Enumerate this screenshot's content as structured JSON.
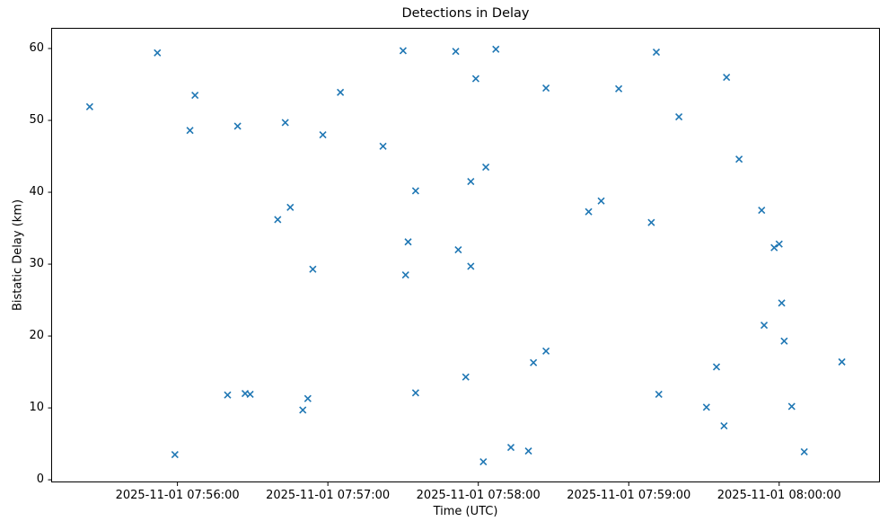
{
  "figure": {
    "title": "Detections in Delay",
    "xlabel": "Time (UTC)",
    "ylabel": "Bistatic Delay (km)"
  },
  "chart_data": {
    "type": "scatter",
    "title": "Detections in Delay",
    "xlabel": "Time (UTC)",
    "ylabel": "Bistatic Delay (km)",
    "date": "2025-11-01",
    "marker": "x",
    "marker_color": "#1f77b4",
    "axis_color": "#000000",
    "grid": false,
    "legend": "none",
    "xlim": [
      "07:55:10",
      "08:00:40"
    ],
    "ylim": [
      -0.3,
      62.75
    ],
    "x_ticks": [
      {
        "time": "07:56:00",
        "label": "2025-11-01 07:56:00"
      },
      {
        "time": "07:57:00",
        "label": "2025-11-01 07:57:00"
      },
      {
        "time": "07:58:00",
        "label": "2025-11-01 07:58:00"
      },
      {
        "time": "07:59:00",
        "label": "2025-11-01 07:59:00"
      },
      {
        "time": "08:00:00",
        "label": "2025-11-01 08:00:00"
      }
    ],
    "y_ticks": [
      0,
      10,
      20,
      30,
      40,
      50,
      60
    ],
    "points": [
      [
        "07:55:25",
        51.9
      ],
      [
        "07:55:52",
        59.4
      ],
      [
        "07:55:59",
        3.5
      ],
      [
        "07:56:05",
        48.6
      ],
      [
        "07:56:07",
        53.5
      ],
      [
        "07:56:20",
        11.8
      ],
      [
        "07:56:24",
        49.2
      ],
      [
        "07:56:27",
        12.0
      ],
      [
        "07:56:29",
        11.9
      ],
      [
        "07:56:40",
        36.2
      ],
      [
        "07:56:43",
        49.7
      ],
      [
        "07:56:45",
        37.9
      ],
      [
        "07:56:50",
        9.7
      ],
      [
        "07:56:52",
        11.3
      ],
      [
        "07:56:54",
        29.3
      ],
      [
        "07:56:58",
        48.0
      ],
      [
        "07:57:05",
        53.9
      ],
      [
        "07:57:22",
        46.4
      ],
      [
        "07:57:30",
        59.7
      ],
      [
        "07:57:31",
        28.5
      ],
      [
        "07:57:32",
        33.1
      ],
      [
        "07:57:35",
        40.2
      ],
      [
        "07:57:35",
        12.1
      ],
      [
        "07:57:51",
        59.6
      ],
      [
        "07:57:52",
        32.0
      ],
      [
        "07:57:55",
        14.3
      ],
      [
        "07:57:57",
        41.5
      ],
      [
        "07:57:57",
        29.7
      ],
      [
        "07:57:59",
        55.8
      ],
      [
        "07:58:02",
        2.5
      ],
      [
        "07:58:03",
        43.5
      ],
      [
        "07:58:07",
        59.9
      ],
      [
        "07:58:13",
        4.5
      ],
      [
        "07:58:20",
        4.0
      ],
      [
        "07:58:22",
        16.3
      ],
      [
        "07:58:27",
        54.5
      ],
      [
        "07:58:27",
        17.9
      ],
      [
        "07:58:44",
        37.3
      ],
      [
        "07:58:49",
        38.8
      ],
      [
        "07:58:56",
        54.4
      ],
      [
        "07:59:09",
        35.8
      ],
      [
        "07:59:11",
        59.5
      ],
      [
        "07:59:12",
        11.9
      ],
      [
        "07:59:20",
        50.5
      ],
      [
        "07:59:31",
        10.1
      ],
      [
        "07:59:35",
        15.7
      ],
      [
        "07:59:38",
        7.5
      ],
      [
        "07:59:39",
        56.0
      ],
      [
        "07:59:44",
        44.6
      ],
      [
        "07:59:53",
        37.5
      ],
      [
        "07:59:54",
        21.5
      ],
      [
        "07:59:58",
        32.3
      ],
      [
        "08:00:00",
        32.8
      ],
      [
        "08:00:01",
        24.6
      ],
      [
        "08:00:02",
        19.3
      ],
      [
        "08:00:05",
        10.2
      ],
      [
        "08:00:10",
        3.9
      ],
      [
        "08:00:25",
        16.4
      ]
    ]
  }
}
